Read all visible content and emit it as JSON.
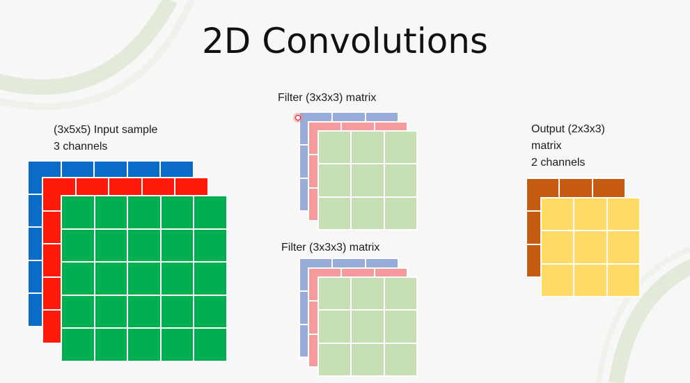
{
  "slide": {
    "title": "2D Convolutions",
    "input": {
      "label_line1": "(3x5x5) Input sample",
      "label_line2": "3 channels",
      "rows": 5,
      "cols": 5,
      "channel_colors": [
        "#0a6cc6",
        "#ff1a0a",
        "#00b050"
      ]
    },
    "filters": [
      {
        "label": "Filter (3x3x3) matrix",
        "rows": 3,
        "cols": 3,
        "channel_colors": [
          "#97acd8",
          "#f59b9e",
          "#c6dfb5"
        ]
      },
      {
        "label": "Filter (3x3x3) matrix",
        "rows": 3,
        "cols": 3,
        "channel_colors": [
          "#97acd8",
          "#f59b9e",
          "#c6dfb5"
        ]
      }
    ],
    "output": {
      "label_line1": "Output (2x3x3)",
      "label_line2": "matrix",
      "label_line3": "2 channels",
      "rows": 3,
      "cols": 3,
      "channel_colors": [
        "#c55a11",
        "#fed966"
      ]
    },
    "decoration_color": "#d7e3cc"
  }
}
